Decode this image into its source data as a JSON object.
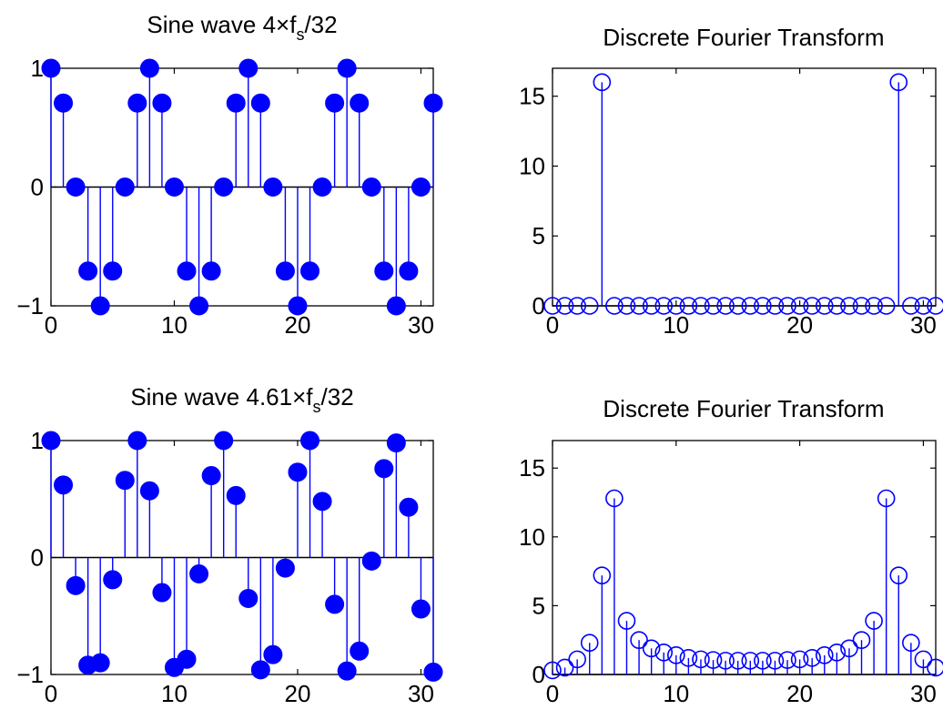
{
  "chart_data": [
    {
      "type": "stem",
      "title": "Sine wave 4×fs/32",
      "title_main": "Sine wave 4×f",
      "title_sub": "s",
      "title_tail": "/32",
      "color": "#0000ff",
      "marker": "filled-circle",
      "xlim": [
        0,
        31
      ],
      "ylim": [
        -1,
        1
      ],
      "xticks": [
        0,
        10,
        20,
        30
      ],
      "yticks": [
        -1,
        0,
        1
      ],
      "ytick_labels": [
        "−1",
        "0",
        "1"
      ],
      "x": [
        0,
        1,
        2,
        3,
        4,
        5,
        6,
        7,
        8,
        9,
        10,
        11,
        12,
        13,
        14,
        15,
        16,
        17,
        18,
        19,
        20,
        21,
        22,
        23,
        24,
        25,
        26,
        27,
        28,
        29,
        30,
        31
      ],
      "values": [
        1,
        0.707,
        0,
        -0.707,
        -1,
        -0.707,
        0,
        0.707,
        1,
        0.707,
        0,
        -0.707,
        -1,
        -0.707,
        0,
        0.707,
        1,
        0.707,
        0,
        -0.707,
        -1,
        -0.707,
        0,
        0.707,
        1,
        0.707,
        0,
        -0.707,
        -1,
        -0.707,
        0,
        0.707
      ]
    },
    {
      "type": "stem",
      "title": "Discrete Fourier Transform",
      "color": "#0000ff",
      "marker": "open-circle",
      "xlim": [
        0,
        31
      ],
      "ylim": [
        0,
        17
      ],
      "xticks": [
        0,
        10,
        20,
        30
      ],
      "yticks": [
        0,
        5,
        10,
        15
      ],
      "ytick_labels": [
        "0",
        "5",
        "10",
        "15"
      ],
      "x": [
        0,
        1,
        2,
        3,
        4,
        5,
        6,
        7,
        8,
        9,
        10,
        11,
        12,
        13,
        14,
        15,
        16,
        17,
        18,
        19,
        20,
        21,
        22,
        23,
        24,
        25,
        26,
        27,
        28,
        29,
        30,
        31
      ],
      "values": [
        0,
        0,
        0,
        0,
        16,
        0,
        0,
        0,
        0,
        0,
        0,
        0,
        0,
        0,
        0,
        0,
        0,
        0,
        0,
        0,
        0,
        0,
        0,
        0,
        0,
        0,
        0,
        0,
        16,
        0,
        0,
        0
      ]
    },
    {
      "type": "stem",
      "title": "Sine wave 4.61×fs/32",
      "title_main": "Sine wave 4.61×f",
      "title_sub": "s",
      "title_tail": "/32",
      "color": "#0000ff",
      "marker": "filled-circle",
      "xlim": [
        0,
        31
      ],
      "ylim": [
        -1,
        1
      ],
      "xticks": [
        0,
        10,
        20,
        30
      ],
      "yticks": [
        -1,
        0,
        1
      ],
      "ytick_labels": [
        "−1",
        "0",
        "1"
      ],
      "x": [
        0,
        1,
        2,
        3,
        4,
        5,
        6,
        7,
        8,
        9,
        10,
        11,
        12,
        13,
        14,
        15,
        16,
        17,
        18,
        19,
        20,
        21,
        22,
        23,
        24,
        25,
        26,
        27,
        28,
        29,
        30,
        31
      ],
      "values": [
        1,
        0.62,
        -0.24,
        -0.92,
        -0.9,
        -0.19,
        0.66,
        1,
        0.57,
        -0.3,
        -0.94,
        -0.87,
        -0.14,
        0.7,
        1,
        0.53,
        -0.35,
        -0.96,
        -0.83,
        -0.09,
        0.73,
        1,
        0.48,
        -0.4,
        -0.97,
        -0.8,
        -0.03,
        0.76,
        0.98,
        0.43,
        -0.44,
        -0.98
      ]
    },
    {
      "type": "stem",
      "title": "Discrete Fourier Transform",
      "color": "#0000ff",
      "marker": "open-circle",
      "xlim": [
        0,
        31
      ],
      "ylim": [
        0,
        17
      ],
      "xticks": [
        0,
        10,
        20,
        30
      ],
      "yticks": [
        0,
        5,
        10,
        15
      ],
      "ytick_labels": [
        "0",
        "5",
        "10",
        "15"
      ],
      "x": [
        0,
        1,
        2,
        3,
        4,
        5,
        6,
        7,
        8,
        9,
        10,
        11,
        12,
        13,
        14,
        15,
        16,
        17,
        18,
        19,
        20,
        21,
        22,
        23,
        24,
        25,
        26,
        27,
        28,
        29,
        30,
        31
      ],
      "values": [
        0.3,
        0.5,
        1.1,
        2.3,
        7.2,
        12.8,
        3.9,
        2.5,
        1.9,
        1.6,
        1.4,
        1.2,
        1.1,
        1.05,
        1.0,
        1.0,
        1.0,
        1.0,
        1.0,
        1.05,
        1.1,
        1.2,
        1.4,
        1.6,
        1.9,
        2.5,
        3.9,
        12.8,
        7.2,
        2.3,
        1.1,
        0.5
      ]
    }
  ]
}
